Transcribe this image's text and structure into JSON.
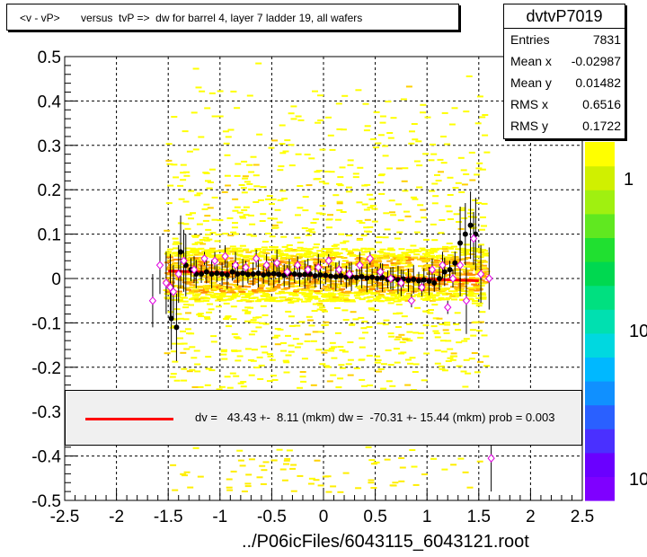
{
  "title": "<v - vP>       versus  tvP =>  dw for barrel 4, layer 7 ladder 19, all wafers",
  "stats": {
    "name": "dvtvP7019",
    "rows": [
      {
        "label": "Entries",
        "value": "7831"
      },
      {
        "label": "Mean x",
        "value": "-0.02987"
      },
      {
        "label": "Mean y",
        "value": "0.01482"
      },
      {
        "label": "RMS x",
        "value": "0.6516"
      },
      {
        "label": "RMS y",
        "value": "0.1722"
      }
    ]
  },
  "fit_text": "dv =   43.43 +-  8.11 (mkm) dw =  -70.31 +- 15.44 (mkm) prob = 0.003",
  "footer": "../P06icFiles/6043115_6043121.root",
  "colors": {
    "fit_line": "#ff0000",
    "black_points": "#000000",
    "magenta_points": "#e000e0",
    "frame": "#000000",
    "grid": "#000000"
  },
  "chart_data": {
    "type": "scatter",
    "title": "<v - vP>       versus  tvP =>  dw for barrel 4, layer 7 ladder 19, all wafers",
    "xlim": [
      -2.5,
      2.5
    ],
    "ylim": [
      -0.5,
      0.5
    ],
    "x_ticks": [
      "-2.5",
      "-2",
      "-1.5",
      "-1",
      "-0.5",
      "0",
      "0.5",
      "1",
      "1.5",
      "2",
      "2.5"
    ],
    "y_ticks": [
      "-0.5",
      "-0.4",
      "-0.3",
      "-0.2",
      "-0.1",
      "0",
      "0.1",
      "0.2",
      "0.3",
      "0.4",
      "0.5"
    ],
    "z_ticks": [
      "1",
      "10",
      "10"
    ],
    "grid": true,
    "fit_line": {
      "x": [
        -1.5,
        1.5
      ],
      "y": [
        0.017,
        -0.005
      ]
    },
    "series": [
      {
        "points": [
          [
            -1.47,
            -0.09
          ],
          [
            -1.42,
            -0.11
          ],
          [
            -1.38,
            0.06
          ],
          [
            -1.33,
            0.03
          ],
          [
            -1.28,
            0.02
          ],
          [
            -1.23,
            0.01
          ],
          [
            -1.18,
            0.01
          ],
          [
            -1.13,
            0.015
          ],
          [
            -1.08,
            0.01
          ],
          [
            -1.03,
            0.012
          ],
          [
            -0.98,
            0.01
          ],
          [
            -0.93,
            0.008
          ],
          [
            -0.88,
            0.015
          ],
          [
            -0.83,
            0.01
          ],
          [
            -0.78,
            0.012
          ],
          [
            -0.73,
            0.009
          ],
          [
            -0.68,
            0.01
          ],
          [
            -0.63,
            0.012
          ],
          [
            -0.58,
            0.008
          ],
          [
            -0.53,
            0.01
          ],
          [
            -0.48,
            0.011
          ],
          [
            -0.43,
            0.009
          ],
          [
            -0.38,
            0.007
          ],
          [
            -0.33,
            0.012
          ],
          [
            -0.28,
            0.01
          ],
          [
            -0.23,
            0.008
          ],
          [
            -0.18,
            0.009
          ],
          [
            -0.13,
            0.01
          ],
          [
            -0.08,
            0.006
          ],
          [
            -0.03,
            0.008
          ],
          [
            0.02,
            0.007
          ],
          [
            0.07,
            0.005
          ],
          [
            0.12,
            0.004
          ],
          [
            0.17,
            0.006
          ],
          [
            0.22,
            0.003
          ],
          [
            0.27,
            0.004
          ],
          [
            0.32,
            0.002
          ],
          [
            0.37,
            0.004
          ],
          [
            0.42,
            0.001
          ],
          [
            0.47,
            0.003
          ],
          [
            0.52,
            0.0
          ],
          [
            0.57,
            0.002
          ],
          [
            0.62,
            -0.002
          ],
          [
            0.67,
            0.0
          ],
          [
            0.72,
            -0.003
          ],
          [
            0.77,
            -0.001
          ],
          [
            0.82,
            -0.004
          ],
          [
            0.87,
            -0.002
          ],
          [
            0.92,
            -0.005
          ],
          [
            0.97,
            -0.003
          ],
          [
            1.02,
            -0.006
          ],
          [
            1.07,
            -0.01
          ],
          [
            1.12,
            0.0
          ],
          [
            1.17,
            0.015
          ],
          [
            1.22,
            0.02
          ],
          [
            1.27,
            0.035
          ],
          [
            1.32,
            0.08
          ],
          [
            1.37,
            0.1
          ],
          [
            1.42,
            0.12
          ],
          [
            1.47,
            0.1
          ]
        ]
      },
      {
        "points": [
          [
            -1.65,
            -0.05
          ],
          [
            -1.58,
            0.03
          ],
          [
            -1.52,
            -0.01
          ],
          [
            -1.48,
            -0.02
          ],
          [
            -1.45,
            -0.03
          ],
          [
            -1.4,
            0.01
          ],
          [
            -1.35,
            0.04
          ],
          [
            -1.25,
            0.02
          ],
          [
            -1.15,
            0.045
          ],
          [
            -1.05,
            0.04
          ],
          [
            -0.95,
            0.05
          ],
          [
            -0.85,
            0.03
          ],
          [
            -0.75,
            0.025
          ],
          [
            -0.65,
            0.045
          ],
          [
            -0.55,
            0.03
          ],
          [
            -0.45,
            0.035
          ],
          [
            -0.35,
            0.015
          ],
          [
            -0.25,
            0.03
          ],
          [
            -0.15,
            0.02
          ],
          [
            -0.05,
            0.025
          ],
          [
            0.05,
            0.04
          ],
          [
            0.15,
            0.02
          ],
          [
            0.25,
            0.01
          ],
          [
            0.35,
            0.03
          ],
          [
            0.45,
            0.045
          ],
          [
            0.55,
            0.015
          ],
          [
            0.65,
            0.0
          ],
          [
            0.75,
            -0.01
          ],
          [
            0.85,
            -0.05
          ],
          [
            0.95,
            -0.02
          ],
          [
            1.05,
            0.02
          ],
          [
            1.15,
            0.03
          ],
          [
            1.2,
            -0.065
          ],
          [
            1.25,
            0.0
          ],
          [
            1.32,
            0.03
          ],
          [
            1.38,
            -0.05
          ],
          [
            1.45,
            0.09
          ],
          [
            1.52,
            0.01
          ],
          [
            1.6,
            0.0
          ],
          [
            1.62,
            -0.405
          ]
        ]
      }
    ]
  }
}
